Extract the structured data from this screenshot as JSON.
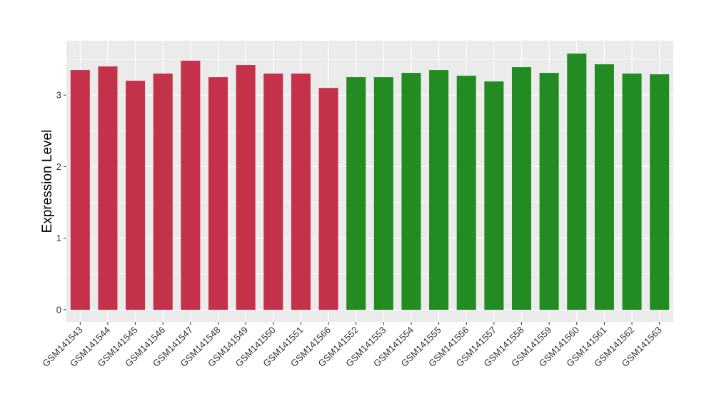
{
  "chart_data": {
    "type": "bar",
    "ylabel": "Expression Level",
    "xlabel": "",
    "ylim": [
      -0.17,
      3.76
    ],
    "yticks": [
      0,
      1,
      2,
      3
    ],
    "ytick_labels": [
      "0",
      "1",
      "2",
      "3"
    ],
    "grid": true,
    "categories": [
      "GSM141543",
      "GSM141544",
      "GSM141545",
      "GSM141546",
      "GSM141547",
      "GSM141548",
      "GSM141549",
      "GSM141550",
      "GSM141551",
      "GSM141566",
      "GSM141552",
      "GSM141553",
      "GSM141554",
      "GSM141555",
      "GSM141556",
      "GSM141557",
      "GSM141558",
      "GSM141559",
      "GSM141560",
      "GSM141561",
      "GSM141562",
      "GSM141563"
    ],
    "values": [
      3.35,
      3.4,
      3.2,
      3.3,
      3.48,
      3.25,
      3.42,
      3.3,
      3.3,
      3.1,
      3.25,
      3.25,
      3.31,
      3.35,
      3.27,
      3.19,
      3.39,
      3.31,
      3.58,
      3.43,
      3.3,
      3.29
    ],
    "bar_colors": [
      "#c4314b",
      "#c4314b",
      "#c4314b",
      "#c4314b",
      "#c4314b",
      "#c4314b",
      "#c4314b",
      "#c4314b",
      "#c4314b",
      "#c4314b",
      "#228b22",
      "#228b22",
      "#228b22",
      "#228b22",
      "#228b22",
      "#228b22",
      "#228b22",
      "#228b22",
      "#228b22",
      "#228b22",
      "#228b22",
      "#228b22"
    ],
    "panel_background": "#ebebeb",
    "grid_color": "#ffffff"
  }
}
